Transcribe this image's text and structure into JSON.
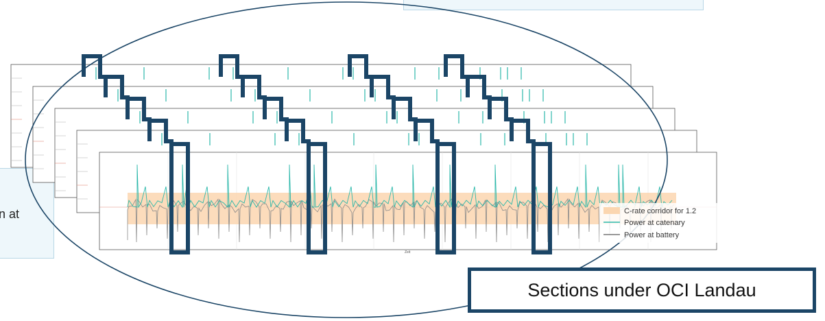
{
  "diagram": {
    "annotation_label": "Sections under OCI Landau",
    "left_note_text": "n at",
    "x_axis_label": "Zeit",
    "legend": [
      {
        "label": "C-rate corridor for 1.2",
        "color": "#fbd6b0"
      },
      {
        "label": "Power at catenary",
        "color": "#2ab7a9"
      },
      {
        "label": "Power at battery",
        "color": "#777777"
      }
    ],
    "colors": {
      "highlight_frame": "#1b4566",
      "ellipse": "#1b4566",
      "catenary": "#2ab7a9",
      "battery": "#8a8a8a",
      "corridor": "#fbd6b0"
    }
  }
}
